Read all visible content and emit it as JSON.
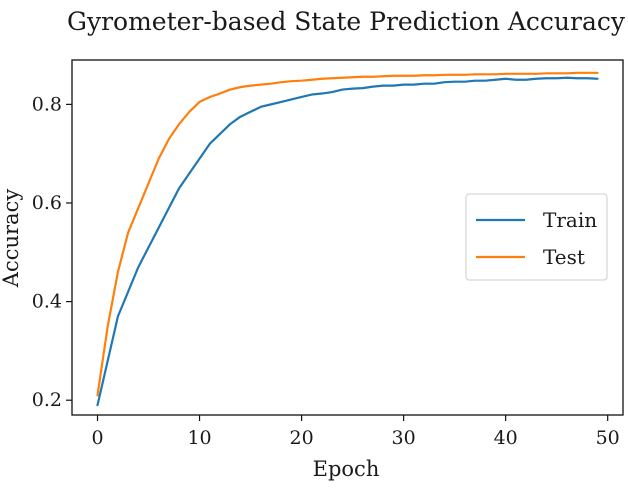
{
  "chart_data": {
    "type": "line",
    "title": "Gyrometer-based State Prediction Accuracy",
    "xlabel": "Epoch",
    "ylabel": "Accuracy",
    "xlim": [
      -2.5,
      51.5
    ],
    "ylim": [
      0.17,
      0.89
    ],
    "xticks": [
      0,
      10,
      20,
      30,
      40,
      50
    ],
    "yticks": [
      0.2,
      0.4,
      0.6,
      0.8
    ],
    "xtick_labels": [
      "0",
      "10",
      "20",
      "30",
      "40",
      "50"
    ],
    "ytick_labels": [
      "0.2",
      "0.4",
      "0.6",
      "0.8"
    ],
    "grid": false,
    "legend_position": "center-right",
    "x": [
      0,
      1,
      2,
      3,
      4,
      5,
      6,
      7,
      8,
      9,
      10,
      11,
      12,
      13,
      14,
      15,
      16,
      17,
      18,
      19,
      20,
      21,
      22,
      23,
      24,
      25,
      26,
      27,
      28,
      29,
      30,
      31,
      32,
      33,
      34,
      35,
      36,
      37,
      38,
      39,
      40,
      41,
      42,
      43,
      44,
      45,
      46,
      47,
      48,
      49
    ],
    "series": [
      {
        "name": "Train",
        "color": "#1f77b4",
        "values": [
          0.19,
          0.28,
          0.37,
          0.42,
          0.47,
          0.51,
          0.55,
          0.59,
          0.63,
          0.66,
          0.69,
          0.72,
          0.74,
          0.76,
          0.775,
          0.785,
          0.795,
          0.8,
          0.805,
          0.81,
          0.815,
          0.82,
          0.822,
          0.825,
          0.83,
          0.832,
          0.833,
          0.836,
          0.838,
          0.838,
          0.84,
          0.84,
          0.842,
          0.842,
          0.845,
          0.846,
          0.846,
          0.848,
          0.848,
          0.85,
          0.852,
          0.85,
          0.85,
          0.852,
          0.853,
          0.853,
          0.854,
          0.853,
          0.853,
          0.852
        ]
      },
      {
        "name": "Test",
        "color": "#ff7f0e",
        "values": [
          0.21,
          0.35,
          0.46,
          0.54,
          0.59,
          0.64,
          0.69,
          0.73,
          0.76,
          0.785,
          0.805,
          0.815,
          0.822,
          0.83,
          0.835,
          0.838,
          0.84,
          0.842,
          0.845,
          0.847,
          0.848,
          0.85,
          0.852,
          0.853,
          0.854,
          0.855,
          0.856,
          0.856,
          0.857,
          0.858,
          0.858,
          0.858,
          0.859,
          0.859,
          0.86,
          0.86,
          0.86,
          0.861,
          0.861,
          0.861,
          0.862,
          0.862,
          0.862,
          0.862,
          0.863,
          0.863,
          0.863,
          0.864,
          0.864,
          0.864
        ]
      }
    ]
  }
}
